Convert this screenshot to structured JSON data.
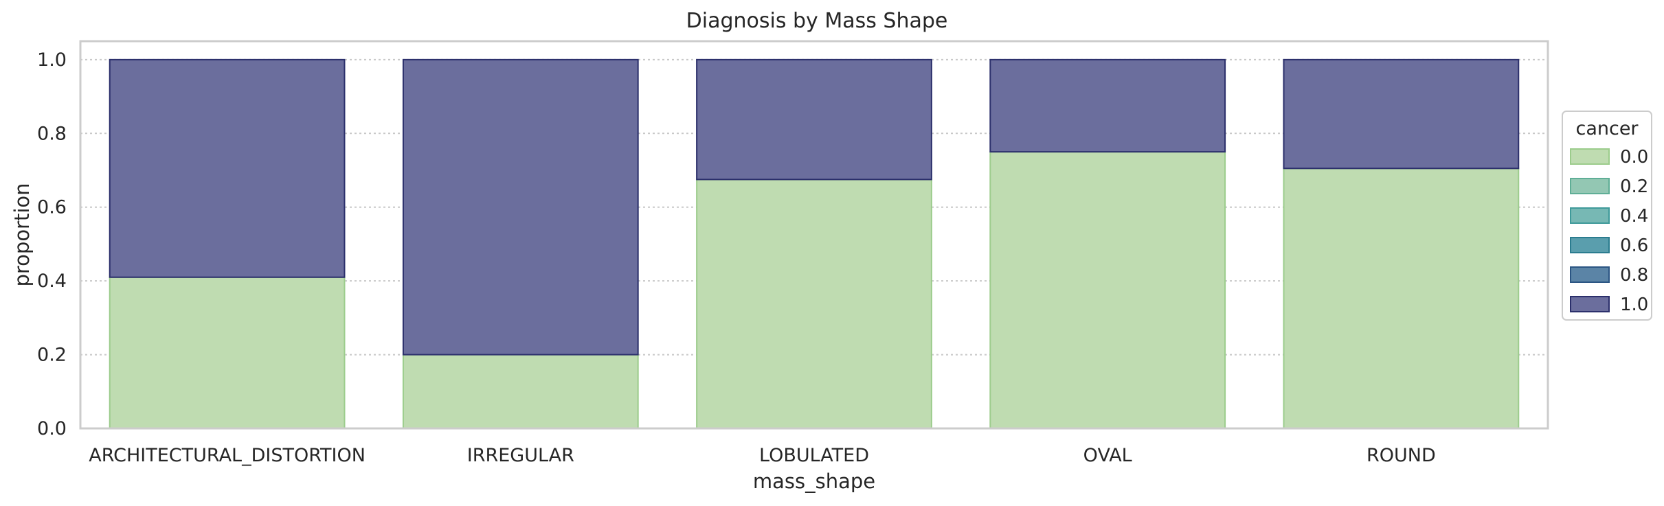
{
  "chart_data": {
    "type": "bar",
    "stacked": true,
    "normalized": true,
    "title": "Diagnosis by Mass Shape",
    "xlabel": "mass_shape",
    "ylabel": "proportion",
    "ylim": [
      0,
      1.05
    ],
    "yticks": [
      "0.0",
      "0.2",
      "0.4",
      "0.6",
      "0.8",
      "1.0"
    ],
    "grid": true,
    "legend_position": "right",
    "categories": [
      "ARCHITECTURAL_DISTORTION",
      "IRREGULAR",
      "LOBULATED",
      "OVAL",
      "ROUND"
    ],
    "series": [
      {
        "name": "0.0",
        "color": "#bfdcb1",
        "edge": "#9ccc8c",
        "values": [
          0.41,
          0.2,
          0.675,
          0.75,
          0.705
        ]
      },
      {
        "name": "1.0",
        "color": "#6b6e9d",
        "edge": "#2b2f6b",
        "values": [
          0.59,
          0.8,
          0.325,
          0.25,
          0.295
        ]
      }
    ],
    "legend": {
      "title": "cancer",
      "entries": [
        {
          "label": "0.0",
          "color": "#bfdcb1",
          "edge": "#9ccc8c"
        },
        {
          "label": "0.2",
          "color": "#93c7b3",
          "edge": "#5fae96"
        },
        {
          "label": "0.4",
          "color": "#77b8b4",
          "edge": "#3f9a9a"
        },
        {
          "label": "0.6",
          "color": "#5a9ead",
          "edge": "#2b7c8f"
        },
        {
          "label": "0.8",
          "color": "#5b84a6",
          "edge": "#2b5583"
        },
        {
          "label": "1.0",
          "color": "#6b6e9d",
          "edge": "#2b2f6b"
        }
      ]
    }
  }
}
